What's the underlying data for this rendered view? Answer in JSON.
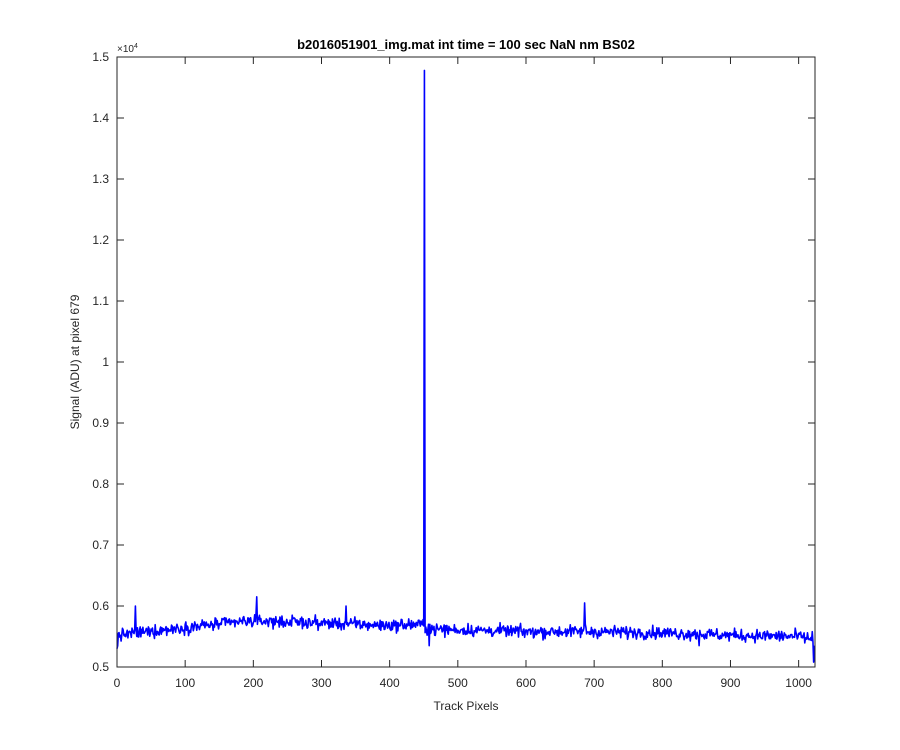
{
  "chart_data": {
    "type": "line",
    "title": "b2016051901_img.mat int time = 100 sec  NaN nm BS02",
    "xlabel": "Track Pixels",
    "ylabel": "Signal (ADU) at pixel 679",
    "y_exponent_label": "×10",
    "y_exponent_power": "4",
    "xlim": [
      0,
      1024
    ],
    "ylim": [
      5000,
      15000
    ],
    "x_ticks": [
      0,
      100,
      200,
      300,
      400,
      500,
      600,
      700,
      800,
      900,
      1000
    ],
    "x_tick_labels": [
      "0",
      "100",
      "200",
      "300",
      "400",
      "500",
      "600",
      "700",
      "800",
      "900",
      "1000"
    ],
    "y_ticks": [
      5000,
      6000,
      7000,
      8000,
      9000,
      10000,
      11000,
      12000,
      13000,
      14000,
      15000
    ],
    "y_tick_labels": [
      "0.5",
      "0.6",
      "0.7",
      "0.8",
      "0.9",
      "1",
      "1.1",
      "1.2",
      "1.3",
      "1.4",
      "1.5"
    ],
    "grid": false,
    "line_color": "#0000ff",
    "series": [
      {
        "baseline": [
          [
            0,
            5520
          ],
          [
            100,
            5650
          ],
          [
            200,
            5760
          ],
          [
            300,
            5720
          ],
          [
            400,
            5680
          ],
          [
            445,
            5700
          ],
          [
            460,
            5620
          ],
          [
            600,
            5580
          ],
          [
            700,
            5580
          ],
          [
            800,
            5560
          ],
          [
            900,
            5520
          ],
          [
            1000,
            5500
          ],
          [
            1024,
            5450
          ]
        ],
        "noise_amplitude": 130,
        "spike": {
          "x": 451,
          "y": 14780
        },
        "features": [
          [
            0,
            5300
          ],
          [
            1,
            5350
          ],
          [
            27,
            6000
          ],
          [
            28,
            5600
          ],
          [
            205,
            6150
          ],
          [
            206,
            5700
          ],
          [
            336,
            6000
          ],
          [
            337,
            5700
          ],
          [
            458,
            5350
          ],
          [
            459,
            5700
          ],
          [
            686,
            6050
          ],
          [
            687,
            5700
          ],
          [
            854,
            5350
          ],
          [
            855,
            5600
          ],
          [
            1020,
            5580
          ],
          [
            1022,
            5080
          ],
          [
            1023,
            5350
          ]
        ]
      }
    ]
  }
}
